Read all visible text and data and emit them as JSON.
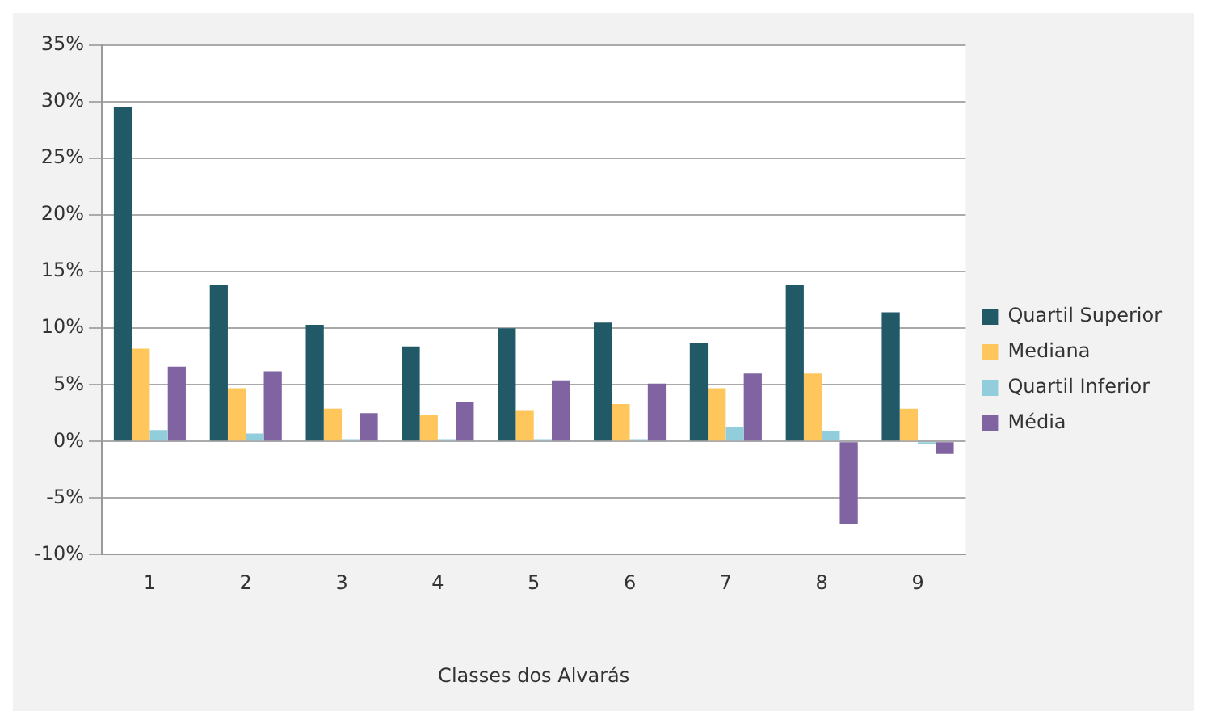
{
  "chart_data": {
    "type": "bar",
    "xlabel": "Classes dos Alvarás",
    "categories": [
      "1",
      "2",
      "3",
      "4",
      "5",
      "6",
      "7",
      "8",
      "9"
    ],
    "series": [
      {
        "name": "Quartil Superior",
        "color": "#215967",
        "values": [
          29.5,
          13.8,
          10.3,
          8.4,
          10.0,
          10.5,
          8.7,
          13.8,
          11.4
        ]
      },
      {
        "name": "Mediana",
        "color": "#ffc65c",
        "values": [
          8.2,
          4.7,
          2.9,
          2.3,
          2.7,
          3.3,
          4.7,
          6.0,
          2.9
        ]
      },
      {
        "name": "Quartil Inferior",
        "color": "#92cddc",
        "values": [
          1.0,
          0.7,
          0.2,
          0.2,
          0.2,
          0.2,
          1.3,
          0.9,
          -0.2
        ]
      },
      {
        "name": "Média",
        "color": "#8064a2",
        "values": [
          6.6,
          6.2,
          2.5,
          3.5,
          5.4,
          5.1,
          6.0,
          -7.3,
          -1.1
        ]
      }
    ],
    "ylim": [
      -10,
      35
    ],
    "yticks": [
      {
        "value": -10,
        "label": "-10%"
      },
      {
        "value": -5,
        "label": "-5%"
      },
      {
        "value": 0,
        "label": "0%"
      },
      {
        "value": 5,
        "label": "5%"
      },
      {
        "value": 10,
        "label": "10%"
      },
      {
        "value": 15,
        "label": "15%"
      },
      {
        "value": 20,
        "label": "20%"
      },
      {
        "value": 25,
        "label": "25%"
      },
      {
        "value": 30,
        "label": "30%"
      },
      {
        "value": 35,
        "label": "35%"
      }
    ],
    "grid": "y",
    "legend": "right"
  }
}
